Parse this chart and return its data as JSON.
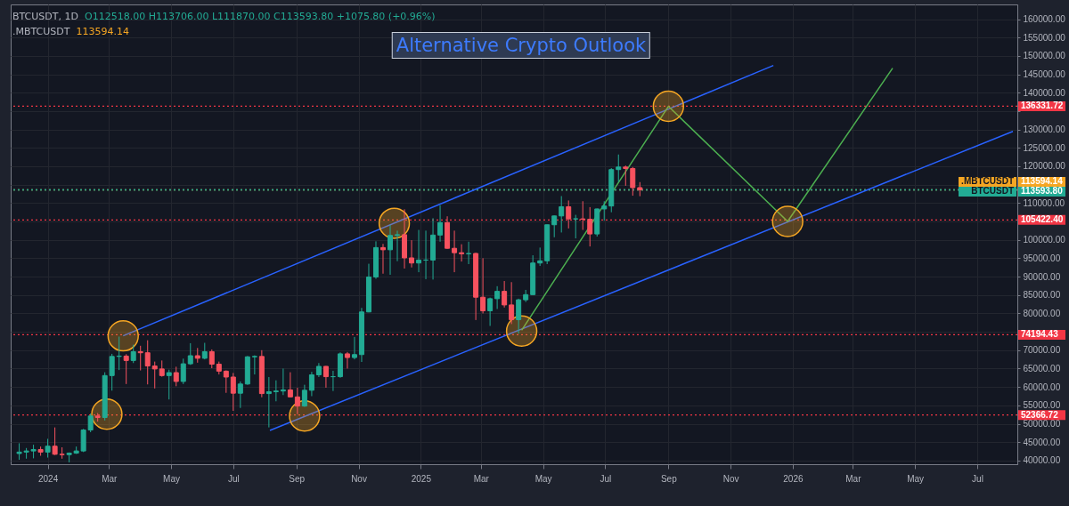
{
  "chart_data": {
    "type": "candlestick",
    "title": "Alternative Crypto Outlook",
    "annotations": [
      "BTCUSDT, 1D",
      "O112518.00 H113706.00 L111870.00 C113593.80 +1075.80 (+0.96%)",
      ".MBTCUSDT",
      "113594.14",
      {
        "text": ".MBTCUSDT",
        "y": 113594.14
      },
      {
        "text": "BTCUSDT",
        "y": 113593.8
      }
    ],
    "x": [
      "2023-12-04",
      "2023-12-11",
      "2023-12-18",
      "2023-12-25",
      "2024-01-01",
      "2024-01-08",
      "2024-01-15",
      "2024-01-22",
      "2024-01-29",
      "2024-02-05",
      "2024-02-12",
      "2024-02-19",
      "2024-02-26",
      "2024-03-04",
      "2024-03-11",
      "2024-03-18",
      "2024-03-25",
      "2024-04-01",
      "2024-04-08",
      "2024-04-15",
      "2024-04-22",
      "2024-04-29",
      "2024-05-06",
      "2024-05-13",
      "2024-05-20",
      "2024-05-27",
      "2024-06-03",
      "2024-06-10",
      "2024-06-17",
      "2024-06-24",
      "2024-07-01",
      "2024-07-08",
      "2024-07-15",
      "2024-07-22",
      "2024-07-29",
      "2024-08-05",
      "2024-08-12",
      "2024-08-19",
      "2024-08-26",
      "2024-09-02",
      "2024-09-09",
      "2024-09-16",
      "2024-09-23",
      "2024-09-30",
      "2024-10-07",
      "2024-10-14",
      "2024-10-21",
      "2024-10-28",
      "2024-11-04",
      "2024-11-11",
      "2024-11-18",
      "2024-11-25",
      "2024-12-02",
      "2024-12-09",
      "2024-12-16",
      "2024-12-23",
      "2024-12-30",
      "2025-01-06",
      "2025-01-13",
      "2025-01-20",
      "2025-01-27",
      "2025-02-03",
      "2025-02-10",
      "2025-02-17",
      "2025-02-24",
      "2025-03-03",
      "2025-03-10",
      "2025-03-17",
      "2025-03-24",
      "2025-03-31",
      "2025-04-07",
      "2025-04-14",
      "2025-04-21",
      "2025-04-28",
      "2025-05-05",
      "2025-05-12",
      "2025-05-19",
      "2025-05-26",
      "2025-06-02",
      "2025-06-09",
      "2025-06-16",
      "2025-06-23",
      "2025-06-30",
      "2025-07-07",
      "2025-07-14",
      "2025-07-21",
      "2025-07-28",
      "2025-08-04"
    ],
    "ohlc": [
      [
        41900,
        44700,
        40200,
        42300
      ],
      [
        42300,
        43400,
        40500,
        42600
      ],
      [
        42600,
        44300,
        40600,
        43000
      ],
      [
        43000,
        43800,
        41300,
        42300
      ],
      [
        42300,
        45900,
        40800,
        43900
      ],
      [
        43900,
        49000,
        41500,
        41700
      ],
      [
        41700,
        43600,
        40500,
        41600
      ],
      [
        41600,
        42200,
        39500,
        42000
      ],
      [
        42000,
        43800,
        41800,
        42600
      ],
      [
        42600,
        48600,
        42300,
        48300
      ],
      [
        48300,
        52800,
        47700,
        52100
      ],
      [
        52100,
        52900,
        50600,
        51700
      ],
      [
        51700,
        64000,
        50900,
        63100
      ],
      [
        63100,
        69000,
        59000,
        68300
      ],
      [
        68300,
        73700,
        64600,
        68400
      ],
      [
        68400,
        68900,
        60800,
        67200
      ],
      [
        67200,
        71500,
        66500,
        69600
      ],
      [
        69600,
        71200,
        64500,
        69300
      ],
      [
        69300,
        72700,
        60700,
        65700
      ],
      [
        65700,
        66900,
        59600,
        64900
      ],
      [
        64900,
        67200,
        62800,
        63100
      ],
      [
        63100,
        64700,
        56600,
        63900
      ],
      [
        63900,
        65500,
        60200,
        61500
      ],
      [
        61500,
        67700,
        60800,
        66300
      ],
      [
        66300,
        71900,
        66000,
        68500
      ],
      [
        68500,
        70600,
        66600,
        67800
      ],
      [
        67800,
        72000,
        67500,
        69600
      ],
      [
        69600,
        70200,
        65100,
        66200
      ],
      [
        66200,
        66900,
        63400,
        64300
      ],
      [
        64300,
        64500,
        58400,
        62700
      ],
      [
        62700,
        63800,
        53500,
        58300
      ],
      [
        58300,
        61500,
        54300,
        60800
      ],
      [
        60800,
        68400,
        60600,
        68200
      ],
      [
        68200,
        68600,
        63400,
        68300
      ],
      [
        68300,
        70000,
        57200,
        58200
      ],
      [
        58200,
        62700,
        49000,
        58700
      ],
      [
        58700,
        61800,
        56100,
        58900
      ],
      [
        58900,
        65000,
        57800,
        59200
      ],
      [
        59200,
        64000,
        57200,
        57300
      ],
      [
        57300,
        59800,
        52600,
        54800
      ],
      [
        54800,
        60600,
        54600,
        59100
      ],
      [
        59100,
        64100,
        57500,
        63300
      ],
      [
        63300,
        66500,
        62700,
        65600
      ],
      [
        65600,
        65700,
        59800,
        62800
      ],
      [
        62800,
        64400,
        58900,
        62800
      ],
      [
        62800,
        69400,
        62500,
        69000
      ],
      [
        69000,
        69500,
        65000,
        68000
      ],
      [
        68000,
        73600,
        67500,
        68800
      ],
      [
        68800,
        81500,
        66800,
        80400
      ],
      [
        80400,
        93500,
        80300,
        89900
      ],
      [
        89900,
        99600,
        89400,
        97900
      ],
      [
        97900,
        98900,
        90800,
        97300
      ],
      [
        97300,
        104000,
        90500,
        101200
      ],
      [
        101200,
        102500,
        94200,
        101400
      ],
      [
        101400,
        108300,
        92200,
        95100
      ],
      [
        95100,
        99900,
        92500,
        93700
      ],
      [
        93700,
        102700,
        91200,
        94500
      ],
      [
        94500,
        102500,
        89300,
        94500
      ],
      [
        94500,
        105900,
        89200,
        101300
      ],
      [
        101300,
        109400,
        99500,
        104700
      ],
      [
        104700,
        106400,
        97600,
        97700
      ],
      [
        97700,
        102500,
        91200,
        96500
      ],
      [
        96500,
        98800,
        94100,
        96200
      ],
      [
        96200,
        99500,
        93400,
        96300
      ],
      [
        96300,
        96500,
        78200,
        84400
      ],
      [
        84400,
        95000,
        80000,
        80700
      ],
      [
        80700,
        84300,
        76600,
        84000
      ],
      [
        84000,
        87400,
        81200,
        86000
      ],
      [
        86000,
        88800,
        81600,
        82300
      ],
      [
        82300,
        88500,
        77100,
        78300
      ],
      [
        78300,
        84000,
        74500,
        83700
      ],
      [
        83700,
        86400,
        83100,
        85100
      ],
      [
        85100,
        95800,
        85100,
        93700
      ],
      [
        93700,
        97900,
        92900,
        94300
      ],
      [
        94300,
        104100,
        93400,
        104100
      ],
      [
        104100,
        106600,
        100700,
        106500
      ],
      [
        106500,
        111900,
        102000,
        109000
      ],
      [
        109000,
        110700,
        103100,
        105700
      ],
      [
        105700,
        106800,
        100400,
        105700
      ],
      [
        105700,
        110500,
        102700,
        105600
      ],
      [
        105600,
        108900,
        98200,
        101600
      ],
      [
        101600,
        108500,
        100900,
        108400
      ],
      [
        108400,
        110500,
        105200,
        109200
      ],
      [
        109200,
        119500,
        107500,
        119100
      ],
      [
        119100,
        123200,
        115700,
        119800
      ],
      [
        119800,
        120200,
        114700,
        119400
      ],
      [
        119400,
        119800,
        112000,
        114200
      ],
      [
        114200,
        115700,
        111870,
        113594
      ]
    ],
    "colors": [
      "#22ab94",
      "#22ab94",
      "#22ab94",
      "#f7525f",
      "#22ab94",
      "#f7525f",
      "#f7525f",
      "#22ab94",
      "#22ab94",
      "#22ab94",
      "#22ab94",
      "#f7525f",
      "#22ab94",
      "#22ab94",
      "#22ab94",
      "#f7525f",
      "#22ab94",
      "#f7525f",
      "#f7525f",
      "#f7525f",
      "#f7525f",
      "#22ab94",
      "#f7525f",
      "#22ab94",
      "#22ab94",
      "#f7525f",
      "#22ab94",
      "#f7525f",
      "#f7525f",
      "#f7525f",
      "#f7525f",
      "#22ab94",
      "#22ab94",
      "#22ab94",
      "#f7525f",
      "#22ab94",
      "#22ab94",
      "#22ab94",
      "#f7525f",
      "#f7525f",
      "#22ab94",
      "#22ab94",
      "#22ab94",
      "#f7525f",
      "#22ab94",
      "#22ab94",
      "#f7525f",
      "#22ab94",
      "#22ab94",
      "#22ab94",
      "#22ab94",
      "#f7525f",
      "#22ab94",
      "#22ab94",
      "#f7525f",
      "#f7525f",
      "#22ab94",
      "#22ab94",
      "#22ab94",
      "#22ab94",
      "#f7525f",
      "#f7525f",
      "#f7525f",
      "#22ab94",
      "#f7525f",
      "#f7525f",
      "#22ab94",
      "#22ab94",
      "#f7525f",
      "#f7525f",
      "#22ab94",
      "#22ab94",
      "#22ab94",
      "#22ab94",
      "#22ab94",
      "#22ab94",
      "#22ab94",
      "#f7525f",
      "#22ab94",
      "#f7525f",
      "#f7525f",
      "#22ab94",
      "#22ab94",
      "#22ab94",
      "#22ab94",
      "#f7525f",
      "#f7525f",
      "#f7525f"
    ],
    "series": [
      {
        "type": "line",
        "color": "#2962ff",
        "x": [
          "2024-03-15",
          "2025-12-13"
        ],
        "values": [
          73900,
          147400
        ]
      },
      {
        "type": "line",
        "color": "#2962ff",
        "x": [
          "2024-08-06",
          "2026-08-05"
        ],
        "values": [
          48200,
          129500
        ]
      },
      {
        "type": "line",
        "color": "#4caf50",
        "x": [
          "2025-04-10",
          "2025-09-01",
          "2025-12-27",
          "2026-04-09"
        ],
        "values": [
          75400,
          136300,
          105000,
          146700
        ]
      },
      {
        "type": "scatter",
        "color": "#f5a623",
        "marker": "circle",
        "x": [
          "2024-02-28",
          "2024-03-15",
          "2024-09-09",
          "2024-12-06",
          "2025-04-10",
          "2025-09-01",
          "2025-12-27"
        ],
        "values": [
          52600,
          73900,
          52100,
          104500,
          75200,
          136300,
          105000
        ]
      }
    ],
    "ref_lines": [
      {
        "axis": "y",
        "value": 136331.72,
        "label": "136331.72",
        "color": "#f23645",
        "line_style": "dotted"
      },
      {
        "axis": "y",
        "value": 113594.14,
        "label": "113594.14",
        "color": "#f5a623",
        "line_style": "dotted"
      },
      {
        "axis": "y",
        "value": 113593.8,
        "label": "113593.80",
        "color": "#22ab94",
        "line_style": "dotted"
      },
      {
        "axis": "y",
        "value": 105422.4,
        "label": "105422.40",
        "color": "#f23645",
        "line_style": "dotted"
      },
      {
        "axis": "y",
        "value": 74194.43,
        "label": "74194.43",
        "color": "#f23645",
        "line_style": "dotted"
      },
      {
        "axis": "y",
        "value": 52366.72,
        "label": "52366.72",
        "color": "#f23645",
        "line_style": "dotted"
      }
    ],
    "xlim": [
      "2023-11-30",
      "2026-08-05"
    ],
    "xticks": [
      {
        "value": "2024-01-01",
        "label": "2024"
      },
      {
        "value": "2024-03-01",
        "label": "Mar"
      },
      {
        "value": "2024-05-01",
        "label": "May"
      },
      {
        "value": "2024-07-01",
        "label": "Jul"
      },
      {
        "value": "2024-09-01",
        "label": "Sep"
      },
      {
        "value": "2024-11-01",
        "label": "Nov"
      },
      {
        "value": "2025-01-01",
        "label": "2025"
      },
      {
        "value": "2025-03-01",
        "label": "Mar"
      },
      {
        "value": "2025-05-01",
        "label": "May"
      },
      {
        "value": "2025-07-01",
        "label": "Jul"
      },
      {
        "value": "2025-09-01",
        "label": "Sep"
      },
      {
        "value": "2025-11-01",
        "label": "Nov"
      },
      {
        "value": "2026-01-01",
        "label": "2026"
      },
      {
        "value": "2026-03-01",
        "label": "Mar"
      },
      {
        "value": "2026-05-01",
        "label": "May"
      },
      {
        "value": "2026-07-01",
        "label": "Jul"
      }
    ],
    "ylim": [
      39000,
      164000
    ],
    "yticks": [
      {
        "value": 40000,
        "label": "40000.00"
      },
      {
        "value": 45000,
        "label": "45000.00"
      },
      {
        "value": 50000,
        "label": "50000.00"
      },
      {
        "value": 55000,
        "label": "55000.00"
      },
      {
        "value": 60000,
        "label": "60000.00"
      },
      {
        "value": 65000,
        "label": "65000.00"
      },
      {
        "value": 70000,
        "label": "70000.00"
      },
      {
        "value": 75000,
        "label": null
      },
      {
        "value": 80000,
        "label": "80000.00"
      },
      {
        "value": 85000,
        "label": "85000.00"
      },
      {
        "value": 90000,
        "label": "90000.00"
      },
      {
        "value": 95000,
        "label": "95000.00"
      },
      {
        "value": 100000,
        "label": "100000.00"
      },
      {
        "value": 105000,
        "label": null
      },
      {
        "value": 110000,
        "label": "110000.00"
      },
      {
        "value": 115000,
        "label": null
      },
      {
        "value": 120000,
        "label": "120000.00"
      },
      {
        "value": 125000,
        "label": "125000.00"
      },
      {
        "value": 130000,
        "label": "130000.00"
      },
      {
        "value": 135000,
        "label": null
      },
      {
        "value": 140000,
        "label": "140000.00"
      },
      {
        "value": 145000,
        "label": "145000.00"
      },
      {
        "value": 150000,
        "label": "150000.00"
      },
      {
        "value": 155000,
        "label": "155000.00"
      },
      {
        "value": 160000,
        "label": "160000.00"
      }
    ],
    "grid": true
  }
}
